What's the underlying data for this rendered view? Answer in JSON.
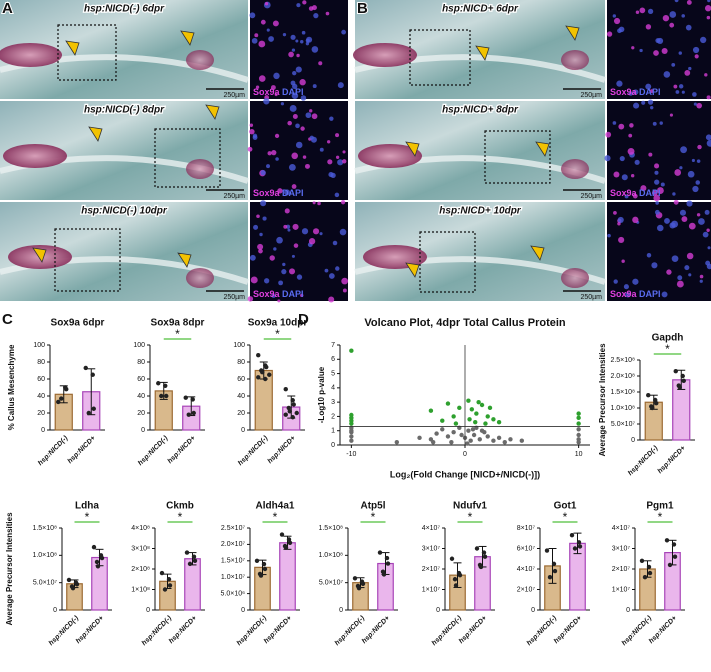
{
  "panel_letters": [
    "A",
    "B",
    "C",
    "D"
  ],
  "images": [
    {
      "rows": [
        {
          "title": "hsp:NICD(-) 6dpr",
          "scale_bar": "250µm",
          "stain": [
            "Sox9a",
            "DAPI"
          ]
        },
        {
          "title": "hsp:NICD(-) 8dpr",
          "scale_bar": "250µm",
          "stain": [
            "Sox9a",
            "DAPI"
          ]
        },
        {
          "title": "hsp:NICD(-) 10dpr",
          "scale_bar": "250µm",
          "stain": [
            "Sox9a",
            "DAPI"
          ]
        }
      ]
    },
    {
      "rows": [
        {
          "title": "hsp:NICD+ 6dpr",
          "scale_bar": "250µm",
          "stain": [
            "Sox9a",
            "DAPI"
          ]
        },
        {
          "title": "hsp:NICD+ 8dpr",
          "scale_bar": "250µm",
          "stain": [
            "Sox9a",
            "DAPI"
          ]
        },
        {
          "title": "hsp:NICD+ 10dpr",
          "scale_bar": "250µm",
          "stain": [
            "Sox9a",
            "DAPI"
          ]
        }
      ]
    }
  ],
  "chart_data": [
    {
      "type": "bar",
      "title": "Sox9a 6dpr",
      "ylabel": "% Callus Mesenchyme",
      "categories": [
        "hsp:NICD(-)",
        "hsp:NICD+"
      ],
      "values": [
        42,
        45
      ],
      "errors": [
        10,
        27
      ],
      "points": [
        [
          33,
          50,
          48,
          37
        ],
        [
          73,
          65,
          25,
          20
        ]
      ],
      "colors": [
        "#d9b98c",
        "#eab6ec"
      ],
      "edge_colors": [
        "#9c6a32",
        "#a844b8"
      ],
      "ylim": [
        0,
        100
      ],
      "yticks": [
        0,
        20,
        40,
        60,
        80,
        100
      ]
    },
    {
      "type": "bar",
      "title": "Sox9a 8dpr",
      "categories": [
        "hsp:NICD(-)",
        "hsp:NICD+"
      ],
      "values": [
        46,
        28
      ],
      "errors": [
        10,
        11
      ],
      "points": [
        [
          55,
          52,
          40,
          40
        ],
        [
          38,
          36,
          20,
          18
        ]
      ],
      "colors": [
        "#d9b98c",
        "#eab6ec"
      ],
      "edge_colors": [
        "#9c6a32",
        "#a844b8"
      ],
      "ylim": [
        0,
        100
      ],
      "yticks": [
        0,
        20,
        40,
        60,
        80,
        100
      ],
      "significance": "*",
      "significance_color": "#4fbf3a"
    },
    {
      "type": "bar",
      "title": "Sox9a 10dpr",
      "categories": [
        "hsp:NICD(-)",
        "hsp:NICD+"
      ],
      "values": [
        70,
        27
      ],
      "errors": [
        10,
        13
      ],
      "points": [
        [
          88,
          76,
          74,
          70,
          68,
          65,
          62,
          60
        ],
        [
          48,
          35,
          30,
          26,
          22,
          20,
          18,
          15
        ]
      ],
      "colors": [
        "#d9b98c",
        "#eab6ec"
      ],
      "edge_colors": [
        "#9c6a32",
        "#a844b8"
      ],
      "ylim": [
        0,
        100
      ],
      "yticks": [
        0,
        20,
        40,
        60,
        80,
        100
      ],
      "significance": "*",
      "significance_color": "#4fbf3a"
    },
    {
      "type": "scatter",
      "title": "Volcano Plot, 4dpr Total Callus Protein",
      "xlabel": "Log₂(Fold Change [NICD+/NICD(-)])",
      "ylabel": "-Log10 p-value",
      "series": [
        {
          "color": "#6b6b6b",
          "x": [
            -10,
            -10,
            -10,
            -10,
            -10,
            10,
            10,
            10,
            10,
            -4,
            -3,
            -2.5,
            -2,
            -1.5,
            -1,
            -0.5,
            0,
            0.3,
            0.5,
            0.8,
            1,
            1.3,
            1.7,
            2,
            2.5,
            3,
            3.5,
            4,
            -6,
            5,
            -1.2,
            0.2,
            0.7,
            -0.3,
            1.5,
            -2.8
          ],
          "y": [
            1.2,
            0.9,
            0.6,
            0.3,
            1,
            1.1,
            0.7,
            0.4,
            0.2,
            0.5,
            0.4,
            0.8,
            1.1,
            0.6,
            0.9,
            1.2,
            0.5,
            1,
            0.3,
            0.7,
            1.2,
            0.4,
            0.9,
            0.6,
            0.3,
            0.5,
            0.2,
            0.4,
            0.2,
            0.3,
            0.2,
            0.1,
            1.1,
            0.7,
            1,
            0.2
          ]
        },
        {
          "color": "#2ea02e",
          "x": [
            -10,
            -10,
            -10,
            -10,
            -10,
            10,
            10,
            10,
            -3,
            -1.5,
            -1,
            -0.5,
            0.3,
            0.6,
            1,
            1.5,
            2,
            2.5,
            -2,
            0.9,
            1.8,
            3,
            -0.8,
            0.4,
            1.2,
            2.2
          ],
          "y": [
            6.6,
            2.1,
            1.9,
            1.7,
            1.5,
            1.9,
            2.2,
            1.5,
            2.4,
            2.9,
            2,
            2.6,
            3.1,
            2.5,
            2.2,
            2.8,
            2,
            1.8,
            1.7,
            1.6,
            1.5,
            1.6,
            1.5,
            1.8,
            3,
            2.6
          ]
        }
      ],
      "xlim": [
        -11,
        11
      ],
      "xticks": [
        -10,
        0,
        10
      ],
      "ylim": [
        0,
        7
      ],
      "yticks": [
        0,
        1,
        2,
        3,
        4,
        5,
        6,
        7
      ],
      "hline": 1.3,
      "vline": 0
    },
    {
      "type": "bar",
      "title": "Gapdh",
      "ylabel": "Average Precursor Intensities",
      "categories": [
        "hsp:NICD(-)",
        "hsp:NICD+"
      ],
      "values": [
        118000000,
        188000000
      ],
      "errors": [
        22000000,
        30000000
      ],
      "points": [
        [
          140000000,
          125000000,
          115000000,
          105000000,
          100000000
        ],
        [
          215000000,
          200000000,
          185000000,
          170000000,
          165000000
        ]
      ],
      "colors": [
        "#d9b98c",
        "#eab6ec"
      ],
      "edge_colors": [
        "#9c6a32",
        "#a844b8"
      ],
      "ylim": [
        0,
        250000000
      ],
      "yticks": [
        0,
        {
          "value": 50000000,
          "label": "5.0×10⁷"
        },
        {
          "value": 100000000,
          "label": "1.0×10⁸"
        },
        {
          "value": 150000000,
          "label": "1.5×10⁸"
        },
        {
          "value": 200000000,
          "label": "2.0×10⁸"
        },
        {
          "value": 250000000,
          "label": "2.5×10⁸"
        }
      ],
      "significance": "*",
      "significance_color": "#4fbf3a"
    },
    {
      "type": "bar",
      "title": "Ldha",
      "ylabel": "Average Precursor Intensities",
      "categories": [
        "hsp:NICD(-)",
        "hsp:NICD+"
      ],
      "values": [
        48000000,
        96000000
      ],
      "errors": [
        7000000,
        15000000
      ],
      "points": [
        [
          55000000,
          50000000,
          47000000,
          43000000,
          40000000
        ],
        [
          115000000,
          100000000,
          95000000,
          88000000,
          80000000
        ]
      ],
      "colors": [
        "#d9b98c",
        "#eab6ec"
      ],
      "edge_colors": [
        "#9c6a32",
        "#a844b8"
      ],
      "ylim": [
        0,
        150000000
      ],
      "yticks": [
        0,
        {
          "value": 50000000,
          "label": "5.0×10⁷"
        },
        {
          "value": 100000000,
          "label": "1.0×10⁸"
        },
        {
          "value": 150000000,
          "label": "1.5×10⁸"
        }
      ],
      "significance": "*",
      "significance_color": "#4fbf3a"
    },
    {
      "type": "bar",
      "title": "Ckmb",
      "categories": [
        "hsp:NICD(-)",
        "hsp:NICD+"
      ],
      "values": [
        140000000,
        250000000
      ],
      "errors": [
        35000000,
        30000000
      ],
      "points": [
        [
          180000000,
          150000000,
          120000000,
          100000000
        ],
        [
          280000000,
          260000000,
          240000000,
          225000000
        ]
      ],
      "colors": [
        "#d9b98c",
        "#eab6ec"
      ],
      "edge_colors": [
        "#9c6a32",
        "#a844b8"
      ],
      "ylim": [
        0,
        400000000
      ],
      "yticks": [
        0,
        {
          "value": 100000000,
          "label": "1×10⁸"
        },
        {
          "value": 200000000,
          "label": "2×10⁸"
        },
        {
          "value": 300000000,
          "label": "3×10⁸"
        },
        {
          "value": 400000000,
          "label": "4×10⁸"
        }
      ],
      "significance": "*",
      "significance_color": "#4fbf3a"
    },
    {
      "type": "bar",
      "title": "Aldh4a1",
      "categories": [
        "hsp:NICD(-)",
        "hsp:NICD+"
      ],
      "values": [
        13000000,
        20500000
      ],
      "errors": [
        2200000,
        2000000
      ],
      "points": [
        [
          15000000,
          14000000,
          12500000,
          11000000,
          10500000
        ],
        [
          23000000,
          21500000,
          20500000,
          19500000,
          19000000
        ]
      ],
      "colors": [
        "#d9b98c",
        "#eab6ec"
      ],
      "edge_colors": [
        "#9c6a32",
        "#a844b8"
      ],
      "ylim": [
        0,
        25000000
      ],
      "yticks": [
        0,
        {
          "value": 5000000,
          "label": "5.0×10⁶"
        },
        {
          "value": 10000000,
          "label": "1.0×10⁷"
        },
        {
          "value": 15000000,
          "label": "1.5×10⁷"
        },
        {
          "value": 20000000,
          "label": "2.0×10⁷"
        },
        {
          "value": 25000000,
          "label": "2.5×10⁷"
        }
      ],
      "significance": "*",
      "significance_color": "#4fbf3a"
    },
    {
      "type": "bar",
      "title": "Atp5l",
      "categories": [
        "hsp:NICD(-)",
        "hsp:NICD+"
      ],
      "values": [
        50000000,
        85000000
      ],
      "errors": [
        9000000,
        20000000
      ],
      "points": [
        [
          58000000,
          52000000,
          48000000,
          44000000,
          40000000
        ],
        [
          105000000,
          95000000,
          85000000,
          70000000,
          65000000
        ]
      ],
      "colors": [
        "#d9b98c",
        "#eab6ec"
      ],
      "edge_colors": [
        "#9c6a32",
        "#a844b8"
      ],
      "ylim": [
        0,
        150000000
      ],
      "yticks": [
        0,
        {
          "value": 50000000,
          "label": "5.0×10⁷"
        },
        {
          "value": 100000000,
          "label": "1.0×10⁸"
        },
        {
          "value": 150000000,
          "label": "1.5×10⁸"
        }
      ],
      "significance": "*",
      "significance_color": "#4fbf3a"
    },
    {
      "type": "bar",
      "title": "Ndufv1",
      "categories": [
        "hsp:NICD(-)",
        "hsp:NICD+"
      ],
      "values": [
        17000000,
        26000000
      ],
      "errors": [
        6000000,
        5000000
      ],
      "points": [
        [
          25000000,
          18000000,
          17000000,
          15000000,
          12000000
        ],
        [
          30000000,
          28000000,
          26000000,
          22000000,
          21000000
        ]
      ],
      "colors": [
        "#d9b98c",
        "#eab6ec"
      ],
      "edge_colors": [
        "#9c6a32",
        "#a844b8"
      ],
      "ylim": [
        0,
        40000000
      ],
      "yticks": [
        0,
        {
          "value": 10000000,
          "label": "1×10⁷"
        },
        {
          "value": 20000000,
          "label": "2×10⁷"
        },
        {
          "value": 30000000,
          "label": "3×10⁷"
        },
        {
          "value": 40000000,
          "label": "4×10⁷"
        }
      ],
      "significance": "*",
      "significance_color": "#4fbf3a"
    },
    {
      "type": "bar",
      "title": "Got1",
      "categories": [
        "hsp:NICD(-)",
        "hsp:NICD+"
      ],
      "values": [
        43000000,
        65000000
      ],
      "errors": [
        17000000,
        10000000
      ],
      "points": [
        [
          58000000,
          45000000,
          38000000,
          32000000
        ],
        [
          73000000,
          66000000,
          62000000,
          60000000
        ]
      ],
      "colors": [
        "#d9b98c",
        "#eab6ec"
      ],
      "edge_colors": [
        "#9c6a32",
        "#a844b8"
      ],
      "ylim": [
        0,
        80000000
      ],
      "yticks": [
        0,
        {
          "value": 20000000,
          "label": "2×10⁷"
        },
        {
          "value": 40000000,
          "label": "4×10⁷"
        },
        {
          "value": 60000000,
          "label": "6×10⁷"
        },
        {
          "value": 80000000,
          "label": "8×10⁷"
        }
      ],
      "significance": "*",
      "significance_color": "#4fbf3a"
    },
    {
      "type": "bar",
      "title": "Pgm1",
      "categories": [
        "hsp:NICD(-)",
        "hsp:NICD+"
      ],
      "values": [
        20000000,
        28000000
      ],
      "errors": [
        4000000,
        6000000
      ],
      "points": [
        [
          24000000,
          21000000,
          18000000,
          16000000
        ],
        [
          34000000,
          32000000,
          26000000,
          22000000
        ]
      ],
      "colors": [
        "#d9b98c",
        "#eab6ec"
      ],
      "edge_colors": [
        "#9c6a32",
        "#a844b8"
      ],
      "ylim": [
        0,
        40000000
      ],
      "yticks": [
        0,
        {
          "value": 10000000,
          "label": "1×10⁷"
        },
        {
          "value": 20000000,
          "label": "2×10⁷"
        },
        {
          "value": 30000000,
          "label": "3×10⁷"
        },
        {
          "value": 40000000,
          "label": "4×10⁷"
        }
      ],
      "significance": "*",
      "significance_color": "#4fbf3a"
    }
  ]
}
